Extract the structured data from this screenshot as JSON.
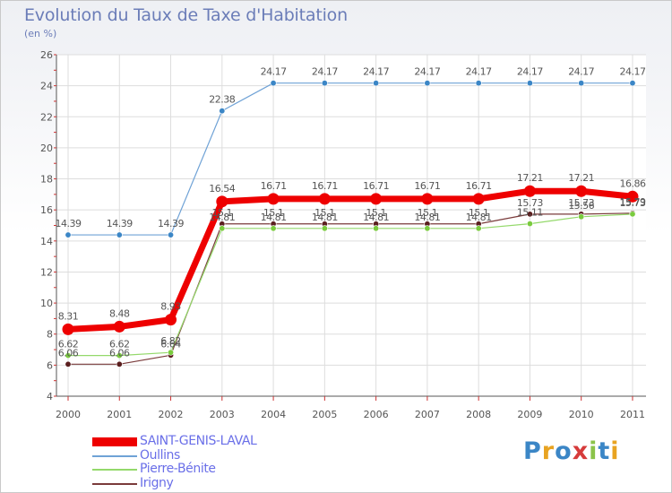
{
  "title": "Evolution du Taux de Taxe d'Habitation",
  "subtitle": "(en %)",
  "logo": {
    "text": "Proxiti",
    "colors": [
      "#3b86c6",
      "#e8a321",
      "#3b86c6",
      "#d63b3b",
      "#8bc34a",
      "#3b86c6",
      "#e8a321"
    ]
  },
  "chart_data": {
    "type": "line",
    "title": "Evolution du Taux de Taxe d'Habitation",
    "ylabel": "(en %)",
    "xlabel": "",
    "x": [
      "2000",
      "2001",
      "2002",
      "2003",
      "2004",
      "2005",
      "2006",
      "2007",
      "2008",
      "2009",
      "2010",
      "2011"
    ],
    "ylim": [
      4,
      26
    ],
    "yticks": [
      "4",
      "6",
      "8",
      "10",
      "12",
      "14",
      "16",
      "18",
      "20",
      "22",
      "24",
      "26"
    ],
    "grid": true,
    "legend_position": "bottom-left",
    "series": [
      {
        "name": "SAINT-GENIS-LAVAL",
        "color": "#ee0000",
        "values": [
          8.31,
          8.48,
          8.93,
          16.54,
          16.71,
          16.71,
          16.71,
          16.71,
          16.71,
          17.21,
          17.21,
          16.86
        ],
        "labels": [
          "8.31",
          "8.48",
          "8.93",
          "16.54",
          "16.71",
          "16.71",
          "16.71",
          "16.71",
          "16.71",
          "17.21",
          "17.21",
          "16.86"
        ]
      },
      {
        "name": "Oullins",
        "color": "#6fa2d6",
        "values": [
          14.39,
          14.39,
          14.39,
          22.38,
          24.17,
          24.17,
          24.17,
          24.17,
          24.17,
          24.17,
          24.17,
          24.17
        ],
        "labels": [
          "14.39",
          "14.39",
          "14.39",
          "22.38",
          "24.17",
          "24.17",
          "24.17",
          "24.17",
          "24.17",
          "24.17",
          "24.17",
          "24.17"
        ]
      },
      {
        "name": "Pierre-Bénite",
        "color": "#94d96b",
        "values": [
          6.62,
          6.62,
          6.82,
          14.81,
          14.81,
          14.81,
          14.81,
          14.81,
          14.81,
          15.11,
          15.56,
          15.73
        ],
        "labels": [
          "6.62",
          "6.62",
          "6.82",
          "14.81",
          "14.81",
          "14.81",
          "14.81",
          "14.81",
          "14.81",
          "15.11",
          "15.56",
          "15.73"
        ]
      },
      {
        "name": "Irigny",
        "color": "#7a3b3b",
        "values": [
          6.06,
          6.06,
          6.64,
          15.1,
          15.1,
          15.1,
          15.1,
          15.1,
          15.1,
          15.73,
          15.73,
          15.79
        ],
        "labels": [
          "6.06",
          "6.06",
          "6.64",
          "15.1",
          "15.1",
          "15.1",
          "15.1",
          "15.1",
          "15.1",
          "15.73",
          "15.73",
          "15.79"
        ]
      }
    ]
  }
}
